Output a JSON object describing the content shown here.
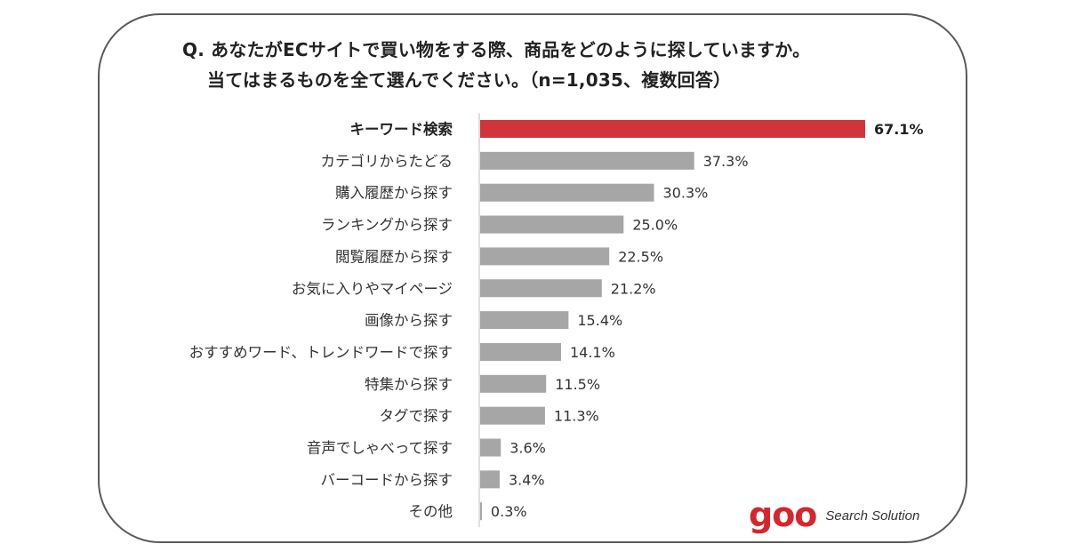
{
  "question": {
    "line1": "Q. あなたがECサイトで買い物をする際、商品をどのように探していますか。",
    "line2": "当てはまるものを全て選んでください。（n=1,035、複数回答）"
  },
  "chart_data": {
    "type": "bar",
    "orientation": "horizontal",
    "title": "Q. あなたがECサイトで買い物をする際、商品をどのように探していますか。当てはまるものを全て選んでください。（n=1,035、複数回答）",
    "categories": [
      "キーワード検索",
      "カテゴリからたどる",
      "購入履歴から探す",
      "ランキングから探す",
      "閲覧履歴から探す",
      "お気に入りやマイページ",
      "画像から探す",
      "おすすめワード、トレンドワードで探す",
      "特集から探す",
      "タグで探す",
      "音声でしゃべって探す",
      "バーコードから探す",
      "その他"
    ],
    "values": [
      67.1,
      37.3,
      30.3,
      25.0,
      22.5,
      21.2,
      15.4,
      14.1,
      11.5,
      11.3,
      3.6,
      3.4,
      0.3
    ],
    "value_labels": [
      "67.1%",
      "37.3%",
      "30.3%",
      "25.0%",
      "22.5%",
      "21.2%",
      "15.4%",
      "14.1%",
      "11.5%",
      "11.3%",
      "3.6%",
      "3.4%",
      "0.3%"
    ],
    "unit": "%",
    "xlim": [
      0,
      70
    ],
    "highlight_index": 0,
    "colors": {
      "highlight": "#d1343a",
      "bar": "#a6a6a6",
      "axis": "#bfbfbf"
    },
    "grid": false,
    "legend": "none"
  },
  "logo": {
    "mark": "goo",
    "text": "Search Solution"
  }
}
